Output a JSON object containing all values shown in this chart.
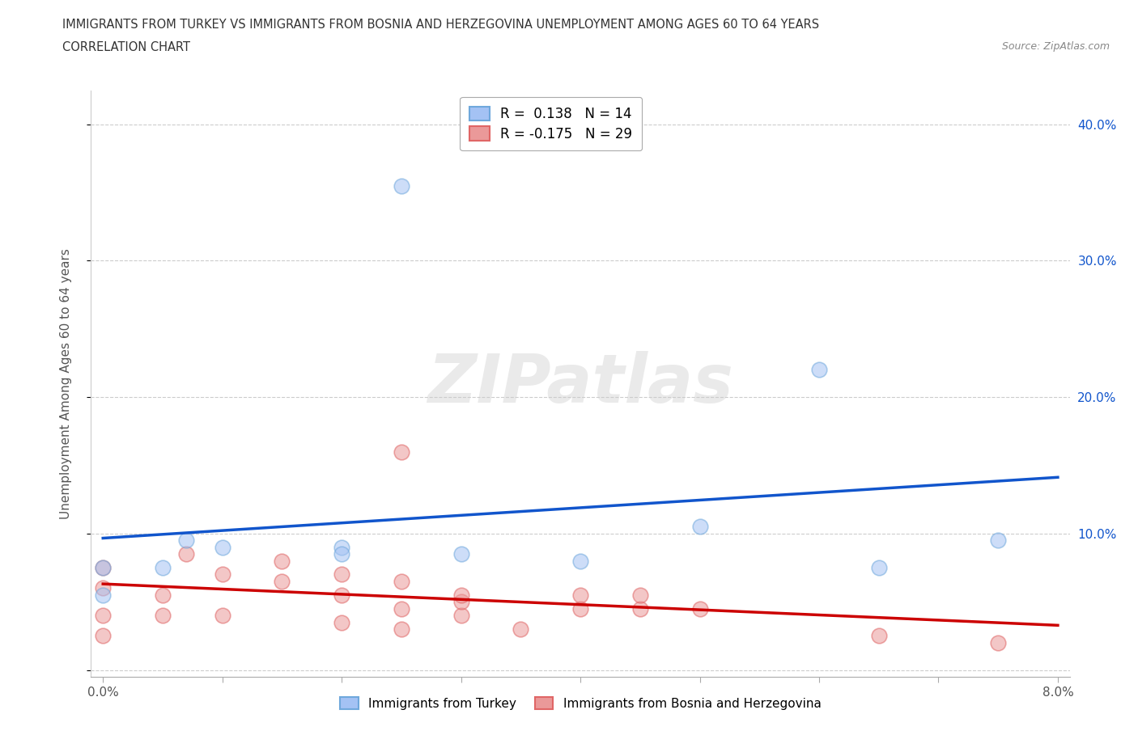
{
  "title_line1": "IMMIGRANTS FROM TURKEY VS IMMIGRANTS FROM BOSNIA AND HERZEGOVINA UNEMPLOYMENT AMONG AGES 60 TO 64 YEARS",
  "title_line2": "CORRELATION CHART",
  "source": "Source: ZipAtlas.com",
  "ylabel": "Unemployment Among Ages 60 to 64 years",
  "x_min": 0.0,
  "x_max": 0.08,
  "y_min": 0.0,
  "y_max": 0.42,
  "x_ticks": [
    0.0,
    0.01,
    0.02,
    0.03,
    0.04,
    0.05,
    0.06,
    0.07,
    0.08
  ],
  "x_tick_labels": [
    "0.0%",
    "",
    "",
    "",
    "",
    "",
    "",
    "",
    "8.0%"
  ],
  "y_ticks": [
    0.0,
    0.1,
    0.2,
    0.3,
    0.4
  ],
  "y_tick_labels": [
    "",
    "10.0%",
    "20.0%",
    "30.0%",
    "40.0%"
  ],
  "turkey_color_edge": "#6fa8dc",
  "turkey_color_fill": "#a4c2f4",
  "bosnia_color_edge": "#e06666",
  "bosnia_color_fill": "#ea9999",
  "turkey_R": 0.138,
  "turkey_N": 14,
  "bosnia_R": -0.175,
  "bosnia_N": 29,
  "turkey_x": [
    0.0,
    0.0,
    0.005,
    0.007,
    0.01,
    0.02,
    0.02,
    0.025,
    0.03,
    0.04,
    0.05,
    0.06,
    0.065,
    0.075
  ],
  "turkey_y": [
    0.055,
    0.075,
    0.075,
    0.095,
    0.09,
    0.09,
    0.085,
    0.355,
    0.085,
    0.08,
    0.105,
    0.22,
    0.075,
    0.095
  ],
  "bosnia_x": [
    0.0,
    0.0,
    0.0,
    0.0,
    0.005,
    0.005,
    0.007,
    0.01,
    0.01,
    0.015,
    0.015,
    0.02,
    0.02,
    0.02,
    0.025,
    0.025,
    0.025,
    0.025,
    0.03,
    0.03,
    0.03,
    0.035,
    0.04,
    0.04,
    0.045,
    0.045,
    0.05,
    0.065,
    0.075
  ],
  "bosnia_y": [
    0.025,
    0.04,
    0.06,
    0.075,
    0.04,
    0.055,
    0.085,
    0.04,
    0.07,
    0.065,
    0.08,
    0.035,
    0.055,
    0.07,
    0.03,
    0.045,
    0.065,
    0.16,
    0.04,
    0.05,
    0.055,
    0.03,
    0.045,
    0.055,
    0.045,
    0.055,
    0.045,
    0.025,
    0.02
  ],
  "turkey_line_color": "#1155cc",
  "bosnia_line_color": "#cc0000",
  "watermark": "ZIPatlas",
  "background_color": "#ffffff",
  "grid_color": "#cccccc",
  "marker_size": 180,
  "marker_alpha": 0.55,
  "marker_linewidth": 1.2
}
